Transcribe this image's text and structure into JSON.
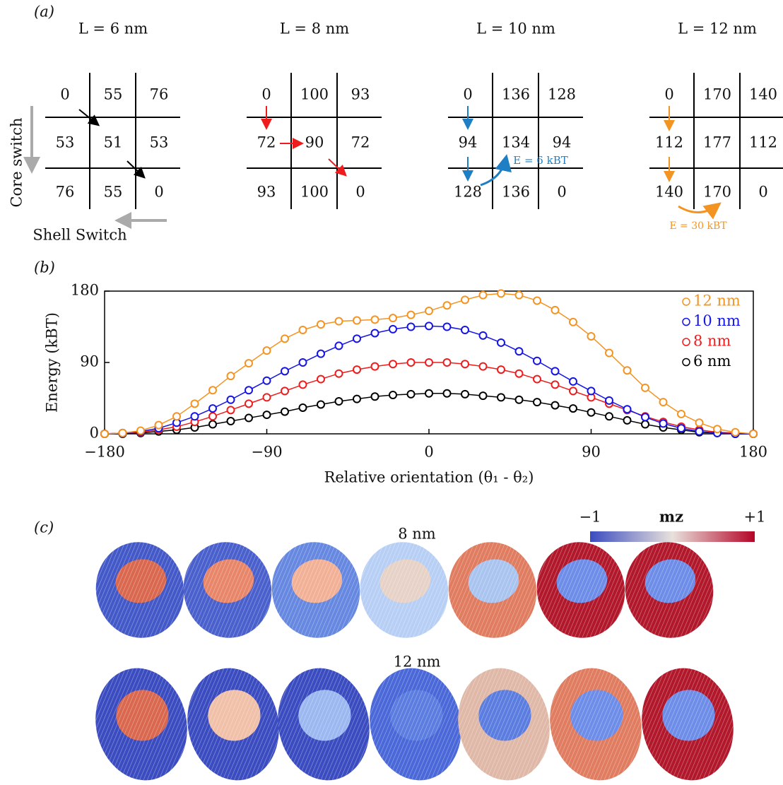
{
  "panel_a": {
    "label": "(a)",
    "grids": [
      {
        "title": "L = 6 nm",
        "cells": [
          [
            0,
            55,
            76
          ],
          [
            53,
            51,
            53
          ],
          [
            76,
            55,
            0
          ]
        ]
      },
      {
        "title": "L = 8 nm",
        "cells": [
          [
            0,
            100,
            93
          ],
          [
            72,
            90,
            72
          ],
          [
            93,
            100,
            0
          ]
        ]
      },
      {
        "title": "L = 10 nm",
        "cells": [
          [
            0,
            136,
            128
          ],
          [
            94,
            134,
            94
          ],
          [
            128,
            136,
            0
          ]
        ]
      },
      {
        "title": "L = 12 nm",
        "cells": [
          [
            0,
            170,
            140
          ],
          [
            112,
            177,
            112
          ],
          [
            140,
            170,
            0
          ]
        ]
      }
    ],
    "core_switch": "Core switch",
    "shell_switch": "Shell Switch",
    "annotations": [
      "E = 6 kBT",
      "E = 30 kBT"
    ]
  },
  "chart_data": {
    "type": "line",
    "panel_label": "(b)",
    "xlabel": "Relative orientation (θ₁ - θ₂)",
    "ylabel": "Energy (kBT)",
    "x": [
      -180,
      -170,
      -160,
      -150,
      -140,
      -130,
      -120,
      -110,
      -100,
      -90,
      -80,
      -70,
      -60,
      -50,
      -40,
      -30,
      -20,
      -10,
      0,
      10,
      20,
      30,
      40,
      50,
      60,
      70,
      80,
      90,
      100,
      110,
      120,
      130,
      140,
      150,
      160,
      170,
      180
    ],
    "xlim": [
      -180,
      180
    ],
    "ylim": [
      0,
      180
    ],
    "xticks": [
      {
        "value": -180,
        "label": "−180"
      },
      {
        "value": -90,
        "label": "−90"
      },
      0,
      90,
      180
    ],
    "yticks": [
      0,
      90,
      180
    ],
    "legend": "upper right",
    "marker": "open-circle",
    "series": [
      {
        "name": "12 nm",
        "color": "#f39422",
        "values": [
          0,
          1,
          4,
          11,
          22,
          38,
          55,
          73,
          89,
          105,
          120,
          131,
          138,
          142,
          143,
          144,
          146,
          150,
          155,
          162,
          169,
          175,
          177,
          175,
          168,
          156,
          141,
          123,
          102,
          80,
          58,
          40,
          25,
          14,
          6,
          2,
          0
        ]
      },
      {
        "name": "10 nm",
        "color": "#1414e6",
        "values": [
          0,
          1,
          3,
          7,
          14,
          22,
          32,
          43,
          55,
          67,
          79,
          90,
          101,
          111,
          120,
          127,
          132,
          135,
          136,
          135,
          131,
          124,
          115,
          104,
          92,
          79,
          66,
          54,
          42,
          31,
          21,
          13,
          7,
          3,
          1,
          0,
          0
        ]
      },
      {
        "name": "8 nm",
        "color": "#ee1c1c",
        "values": [
          0,
          1,
          2,
          5,
          9,
          15,
          22,
          30,
          38,
          46,
          54,
          62,
          69,
          76,
          81,
          85,
          88,
          90,
          90,
          90,
          88,
          85,
          81,
          76,
          69,
          62,
          54,
          46,
          38,
          30,
          22,
          15,
          9,
          5,
          2,
          1,
          0
        ]
      },
      {
        "name": "6 nm",
        "color": "#000000",
        "values": [
          0,
          0,
          1,
          3,
          5,
          8,
          12,
          16,
          20,
          24,
          28,
          33,
          37,
          41,
          44,
          47,
          49,
          50,
          51,
          51,
          50,
          48,
          46,
          43,
          40,
          36,
          32,
          27,
          22,
          17,
          12,
          8,
          5,
          2,
          1,
          0,
          0
        ]
      }
    ]
  },
  "panel_c": {
    "label": "(c)",
    "colorbar": {
      "min_label": "−1",
      "title": "mz",
      "max_label": "+1"
    },
    "rows": [
      "8 nm",
      "12 nm"
    ]
  }
}
